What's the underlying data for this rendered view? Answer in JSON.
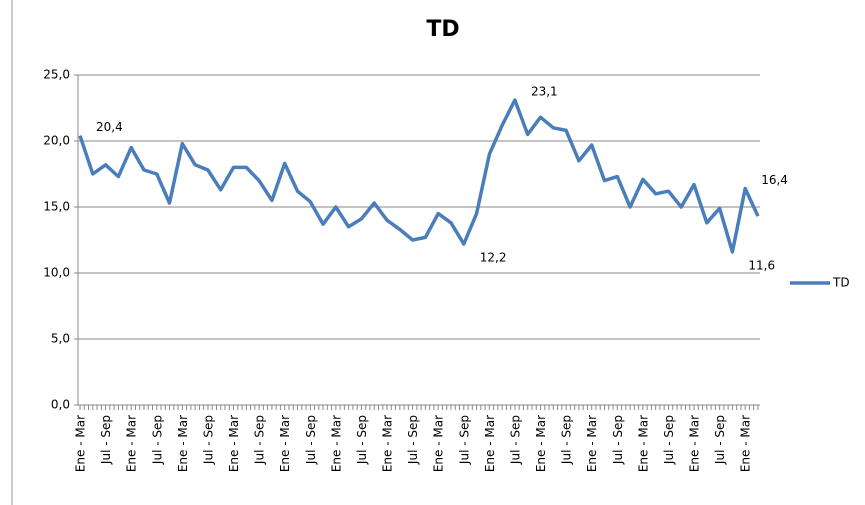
{
  "chart_data": {
    "type": "line",
    "title": "TD",
    "categories": [
      "Ene - Mar",
      null,
      "Jul - Sep",
      null,
      "Ene - Mar",
      null,
      "Jul - Sep",
      null,
      "Ene - Mar",
      null,
      "Jul - Sep",
      null,
      "Ene - Mar",
      null,
      "Jul - Sep",
      null,
      "Ene - Mar",
      null,
      "Jul - Sep",
      null,
      "Ene - Mar",
      null,
      "Jul - Sep",
      null,
      "Ene - Mar",
      null,
      "Jul - Sep",
      null,
      "Ene - Mar",
      null,
      "Jul - Sep",
      null,
      "Ene - Mar",
      null,
      "Jul - Sep",
      null,
      "Ene - Mar",
      null,
      "Jul - Sep",
      null,
      "Ene - Mar",
      null,
      "Jul - Sep",
      null,
      "Ene - Mar",
      null,
      "Jul - Sep",
      null,
      "Ene - Mar",
      null,
      "Jul - Sep",
      null,
      "Ene - Mar",
      null
    ],
    "series": [
      {
        "name": "TD",
        "color": "#4a7ebb",
        "values": [
          20.4,
          17.5,
          18.2,
          17.3,
          19.5,
          17.8,
          17.5,
          15.3,
          19.8,
          18.2,
          17.8,
          16.3,
          18.0,
          18.0,
          17.0,
          15.5,
          18.3,
          16.2,
          15.4,
          13.7,
          15.0,
          13.5,
          14.1,
          15.3,
          14.0,
          13.3,
          12.5,
          12.7,
          14.5,
          13.8,
          12.2,
          14.5,
          19.0,
          21.2,
          23.1,
          20.5,
          21.8,
          21.0,
          20.8,
          18.5,
          19.7,
          17.0,
          17.3,
          15.0,
          17.1,
          16.0,
          16.2,
          15.0,
          16.7,
          13.8,
          14.9,
          11.6,
          16.4,
          14.3
        ],
        "value_labels": [
          "20,4",
          null,
          null,
          null,
          null,
          null,
          null,
          null,
          null,
          null,
          null,
          null,
          null,
          null,
          null,
          null,
          null,
          null,
          null,
          null,
          null,
          null,
          null,
          null,
          null,
          null,
          null,
          null,
          null,
          null,
          "12,2",
          null,
          null,
          null,
          "23,1",
          null,
          null,
          null,
          null,
          null,
          null,
          null,
          null,
          null,
          null,
          null,
          null,
          null,
          null,
          null,
          null,
          "11,6",
          "16,4",
          null
        ]
      }
    ],
    "ylim": [
      0,
      25
    ],
    "yticks": [
      {
        "value": 0,
        "label": "0,0"
      },
      {
        "value": 5,
        "label": "5,0"
      },
      {
        "value": 10,
        "label": "10,0"
      },
      {
        "value": 15,
        "label": "15,0"
      },
      {
        "value": 20,
        "label": "20,0"
      },
      {
        "value": 25,
        "label": "25,0"
      }
    ],
    "grid": true,
    "legend": "right"
  }
}
